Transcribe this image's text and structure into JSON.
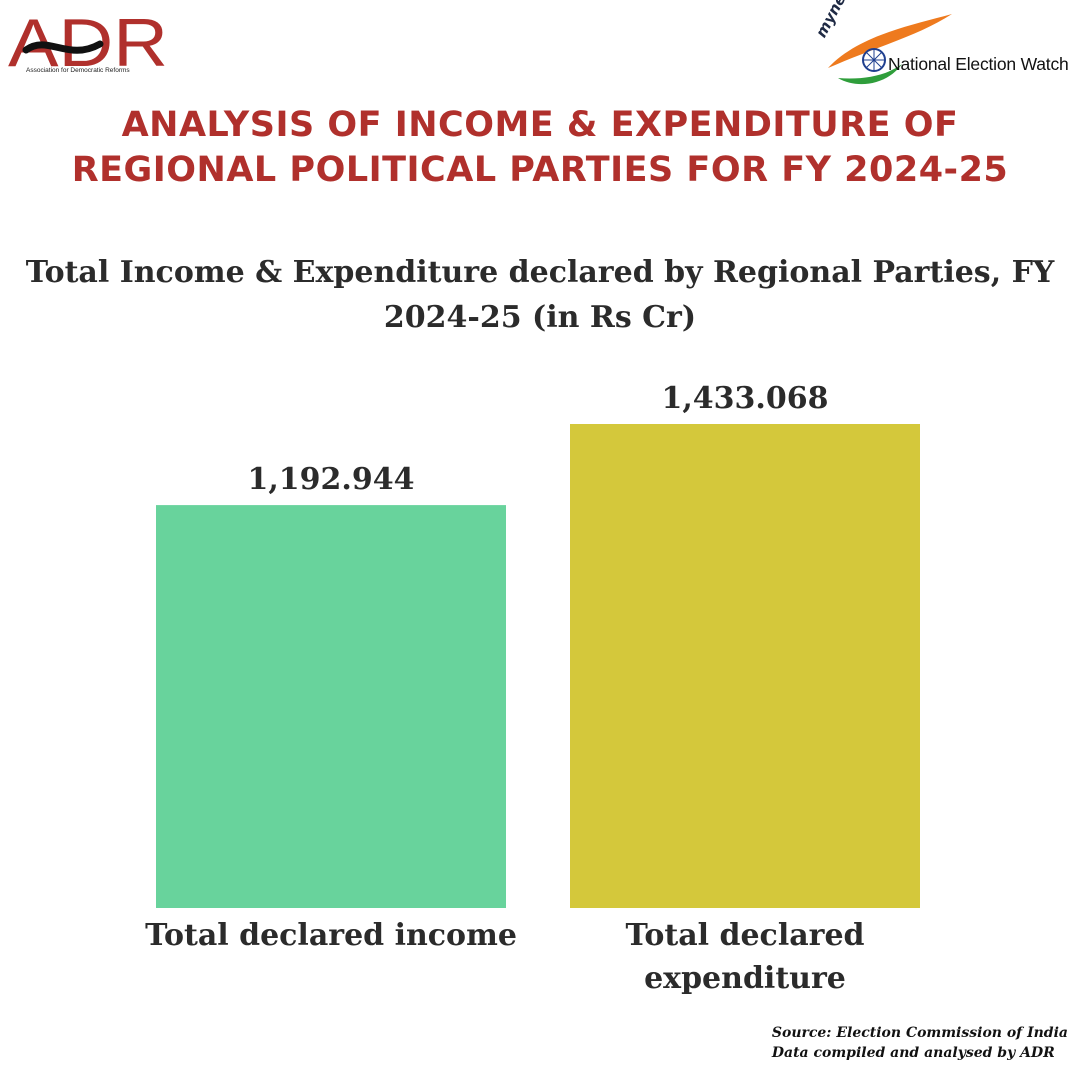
{
  "logos": {
    "adr_name": "ADR",
    "adr_tagline": "Association for Democratic Reforms",
    "myneta": "myneta.info",
    "new_name": "National Election Watch"
  },
  "headline": "ANALYSIS OF INCOME & EXPENDITURE OF REGIONAL POLITICAL PARTIES FOR FY 2024-25",
  "subtitle": "Total Income & Expenditure declared by Regional Parties, FY 2024-25 (in Rs Cr)",
  "chart_data": {
    "type": "bar",
    "title": "Total Income & Expenditure declared by Regional Parties, FY 2024-25 (in Rs Cr)",
    "categories": [
      "Total declared income",
      "Total declared expenditure"
    ],
    "values": [
      1192.944,
      1433.068
    ],
    "value_labels": [
      "1,192.944",
      "1,433.068"
    ],
    "colors": [
      "#68d39c",
      "#d4c83b"
    ],
    "ylim": [
      0,
      1433.068
    ],
    "grid": false,
    "legend": "none"
  },
  "source": {
    "line1": "Source: Election Commission of India",
    "line2": "Data compiled and analysed by ADR"
  },
  "colors": {
    "headline": "#b0302c",
    "text": "#2b2b2b"
  }
}
